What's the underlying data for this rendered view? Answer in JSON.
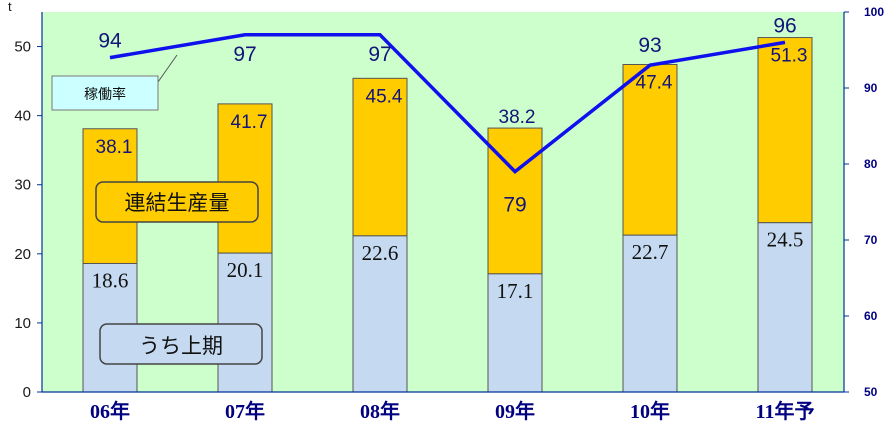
{
  "chart_data": {
    "type": "bar",
    "stacked": true,
    "categories": [
      "06年",
      "07年",
      "08年",
      "09年",
      "10年",
      "11年予"
    ],
    "series": [
      {
        "name": "うち上期",
        "values": [
          18.6,
          20.1,
          22.6,
          17.1,
          22.7,
          24.5
        ],
        "color": "#c5daf0"
      },
      {
        "name": "連結生産量",
        "values": [
          38.1,
          41.7,
          45.4,
          38.2,
          47.4,
          51.3
        ],
        "color": "#ffcc00"
      }
    ],
    "line_series": {
      "name": "稼働率",
      "values": [
        94,
        97,
        97,
        79,
        93,
        96
      ],
      "color": "#1010ee",
      "axis": "right"
    },
    "y_left": {
      "min": 0,
      "max": 55,
      "ticks": [
        0,
        10,
        20,
        30,
        40,
        50
      ],
      "unit": "t"
    },
    "y_right": {
      "min": 50,
      "max": 100,
      "ticks": [
        50,
        60,
        70,
        80,
        90,
        100
      ]
    },
    "title": "",
    "grid": false,
    "plot_background": "#ccffcc",
    "axis_color": "#003399"
  }
}
